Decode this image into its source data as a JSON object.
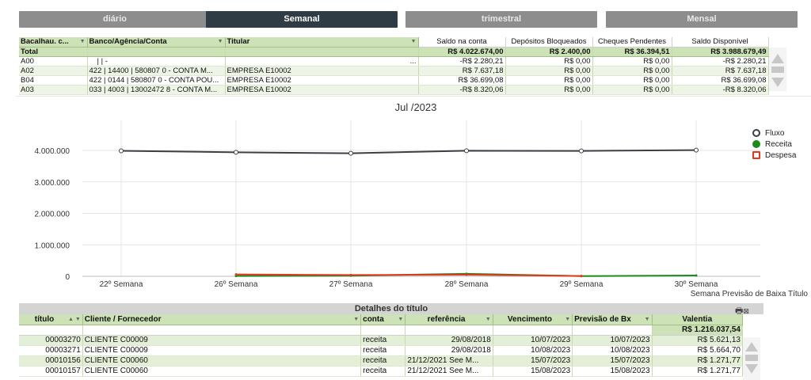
{
  "tabs": [
    {
      "label": "diário",
      "active": false
    },
    {
      "label": "Semanal",
      "active": true
    },
    {
      "label": "trimestral",
      "active": false
    },
    {
      "label": "Mensal",
      "active": false
    }
  ],
  "accounts": {
    "headers": [
      "Bacalhau. c...",
      "Banco/Agência/Conta",
      "Titular",
      "Saldo na conta",
      "Depósitos Bloqueados",
      "Cheques Pendentes",
      "Saldo Disponível"
    ],
    "total": {
      "label": "Total",
      "saldo": "R$ 4.022.674,00",
      "depositos": "R$ 2.400,00",
      "cheques": "R$ 36.394,51",
      "disponivel": "R$ 3.988.679,49"
    },
    "rows": [
      {
        "cod": "A00",
        "banco": "| | -",
        "titular": "...",
        "saldo": "-R$ 2.280,21",
        "depositos": "R$ 0,00",
        "cheques": "R$ 0,00",
        "disponivel": "-R$ 2.280,21"
      },
      {
        "cod": "A02",
        "banco": "422 | 14400 | 580807 0 - CONTA M...",
        "titular": "EMPRESA E10002",
        "saldo": "R$ 7.637,18",
        "depositos": "R$ 0,00",
        "cheques": "R$ 0,00",
        "disponivel": "R$ 7.637,18"
      },
      {
        "cod": "B04",
        "banco": "422 | 0144 | 580807 0 - CONTA POU...",
        "titular": "EMPRESA E10002",
        "saldo": "R$ 36.699,08",
        "depositos": "R$ 0,00",
        "cheques": "R$ 0,00",
        "disponivel": "R$ 36.699,08"
      },
      {
        "cod": "A03",
        "banco": "033 | 4003 | 13002472 8 - CONTA M...",
        "titular": "EMPRESA E10002",
        "saldo": "-R$ 8.320,06",
        "depositos": "R$ 0,00",
        "cheques": "R$ 0,00",
        "disponivel": "-R$ 8.320,06"
      }
    ]
  },
  "chart_data": {
    "type": "line",
    "title": "Jul /2023",
    "xlabel": "Semana Previsão de Baixa Título",
    "ylabel": "",
    "categories": [
      "22º Semana",
      "26º Semana",
      "27º Semana",
      "28º Semana",
      "29º Semana",
      "30º Semana"
    ],
    "yticks": [
      "0",
      "1.000.000",
      "2.000.000",
      "3.000.000",
      "4.000.000"
    ],
    "ylim": [
      0,
      4000000
    ],
    "series": [
      {
        "name": "Fluxo",
        "color": "#3a3f44",
        "values": [
          3988679,
          3940000,
          3910000,
          3990000,
          3985000,
          4010000
        ]
      },
      {
        "name": "Receita",
        "color": "#1e8a1e",
        "values": [
          null,
          10000,
          20000,
          80000,
          5000,
          25000
        ]
      },
      {
        "name": "Despesa",
        "color": "#e03a1e",
        "values": [
          null,
          60000,
          40000,
          50000,
          10000,
          null
        ]
      }
    ],
    "legend_position": "right",
    "grid": true
  },
  "details": {
    "title": "Detalhes do título",
    "headers": [
      "título",
      "Cliente / Fornecedor",
      "conta",
      "referência",
      "Vencimento",
      "Previsão de Bx",
      "Valentia"
    ],
    "total": "R$ 1.216.037,54",
    "rows": [
      {
        "titulo": "00003270",
        "cliente": "CLIENTE C00009",
        "conta": "receita",
        "referencia": "29/08/2018",
        "vencimento": "10/07/2023",
        "previsao": "10/07/2023",
        "valor": "R$ 5.621,13"
      },
      {
        "titulo": "00003271",
        "cliente": "CLIENTE C00009",
        "conta": "receita",
        "referencia": "29/08/2018",
        "vencimento": "10/08/2023",
        "previsao": "10/08/2023",
        "valor": "R$ 5.664,70"
      },
      {
        "titulo": "00010156",
        "cliente": "CLIENTE C00060",
        "conta": "receita",
        "referencia": "21/12/2021 See M...",
        "vencimento": "15/07/2023",
        "previsao": "15/07/2023",
        "valor": "R$ 1.271,77"
      },
      {
        "titulo": "00010157",
        "cliente": "CLIENTE C00060",
        "conta": "receita",
        "referencia": "21/12/2021 See M...",
        "vencimento": "15/08/2023",
        "previsao": "15/08/2023",
        "valor": "R$ 1.271,77"
      }
    ]
  }
}
